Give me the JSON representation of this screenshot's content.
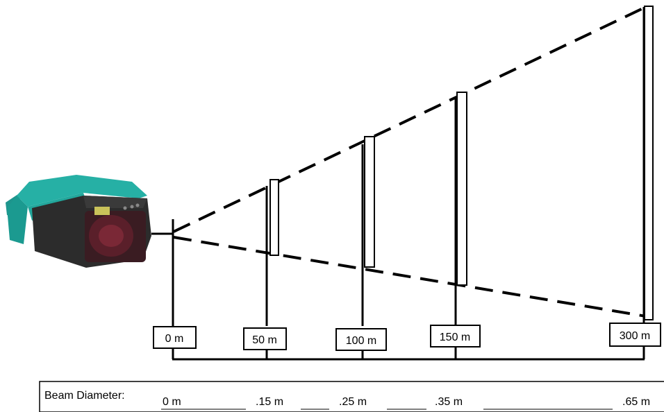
{
  "device": {
    "name": "laser-sensor",
    "body_color": "#1fa39a",
    "front_color": "#2b2b2b",
    "lens_color": "#6b1f2a"
  },
  "distances": [
    {
      "label": "0 m"
    },
    {
      "label": "50 m"
    },
    {
      "label": "100 m"
    },
    {
      "label": "150 m"
    },
    {
      "label": "300 m"
    }
  ],
  "beam_table": {
    "title": "Beam Diameter:",
    "values": [
      "0 m",
      ".15 m",
      ".25 m",
      ".35 m",
      ".65 m"
    ]
  }
}
